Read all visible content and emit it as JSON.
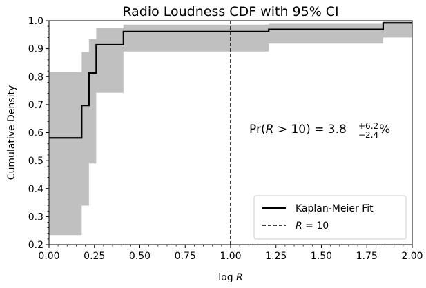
{
  "chart_data": {
    "type": "line",
    "title": "Radio Loudness CDF with 95% CI",
    "xlabel": "log R",
    "ylabel": "Cumulative Density",
    "xlim": [
      0.0,
      2.0
    ],
    "ylim": [
      0.2,
      1.0
    ],
    "x_ticks": [
      0.0,
      0.25,
      0.5,
      0.75,
      1.0,
      1.25,
      1.5,
      1.75,
      2.0
    ],
    "x_tick_labels": [
      "0.00",
      "0.25",
      "0.50",
      "0.75",
      "1.00",
      "1.25",
      "1.50",
      "1.75",
      "2.00"
    ],
    "y_ticks": [
      0.2,
      0.3,
      0.4,
      0.5,
      0.6,
      0.7,
      0.8,
      0.9,
      1.0
    ],
    "y_tick_labels": [
      "0.2",
      "0.3",
      "0.4",
      "0.5",
      "0.6",
      "0.7",
      "0.8",
      "0.9",
      "1.0"
    ],
    "grid": false,
    "legend_position": "bottom-right",
    "series": [
      {
        "name": "Kaplan-Meier Fit",
        "style": "solid",
        "color": "#000000",
        "step_x": [
          0.0,
          0.18,
          0.22,
          0.26,
          0.41,
          1.21,
          1.84,
          2.0
        ],
        "step_y": [
          0.581,
          0.697,
          0.813,
          0.914,
          0.961,
          0.969,
          0.992,
          0.992
        ]
      }
    ],
    "ci_band": {
      "color": "#c0c0c0",
      "step_x": [
        0.0,
        0.18,
        0.22,
        0.26,
        0.41,
        1.21,
        1.84,
        1.86,
        2.0
      ],
      "lower": [
        0.234,
        0.339,
        0.49,
        0.742,
        0.89,
        0.918,
        0.94,
        0.94,
        0.94
      ],
      "upper": [
        0.817,
        0.888,
        0.934,
        0.975,
        0.986,
        0.989,
        0.998,
        1.0,
        1.0
      ]
    },
    "reference_line": {
      "name": "R = 10",
      "legend_prefix": "R",
      "legend_suffix": " = 10",
      "x": 1.0,
      "style": "dashed",
      "color": "#000000"
    },
    "annotation": {
      "prefix": "Pr(",
      "variable": "R",
      "relation": " > 10) = 3.8",
      "upper_error": "+6.2",
      "lower_error": "−2.4",
      "unit": "%"
    }
  }
}
